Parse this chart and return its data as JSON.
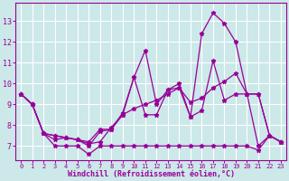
{
  "title": "",
  "xlabel": "Windchill (Refroidissement éolien,°C)",
  "x": [
    0,
    1,
    2,
    3,
    4,
    5,
    6,
    7,
    8,
    9,
    10,
    11,
    12,
    13,
    14,
    15,
    16,
    17,
    18,
    19,
    20,
    21,
    22,
    23
  ],
  "series1": [
    9.5,
    9.0,
    7.6,
    7.0,
    7.0,
    7.0,
    6.6,
    7.0,
    7.0,
    7.0,
    7.0,
    7.0,
    7.0,
    7.0,
    7.0,
    7.0,
    7.0,
    7.0,
    7.0,
    7.0,
    7.0,
    6.8,
    7.5,
    7.2
  ],
  "series2": [
    9.5,
    9.0,
    7.6,
    7.5,
    7.4,
    7.3,
    7.2,
    7.8,
    7.8,
    8.6,
    10.3,
    11.6,
    9.0,
    9.7,
    10.0,
    8.4,
    12.4,
    13.4,
    12.9,
    12.0,
    9.5,
    9.5,
    7.5,
    7.2
  ],
  "series3": [
    9.5,
    9.0,
    7.6,
    7.5,
    7.4,
    7.3,
    7.0,
    7.7,
    7.8,
    8.5,
    10.3,
    8.5,
    8.5,
    9.7,
    9.8,
    8.4,
    8.7,
    11.1,
    9.2,
    9.5,
    9.5,
    9.5,
    7.5,
    7.2
  ],
  "series4": [
    9.5,
    9.0,
    7.6,
    7.3,
    7.4,
    7.3,
    7.1,
    7.2,
    7.9,
    8.5,
    8.8,
    9.0,
    9.2,
    9.5,
    9.8,
    9.1,
    9.3,
    9.8,
    10.1,
    10.5,
    9.5,
    7.0,
    7.5,
    7.2
  ],
  "color": "#990099",
  "bg_color": "#cce8e8",
  "ylim": [
    6.3,
    13.9
  ],
  "yticks": [
    7,
    8,
    9,
    10,
    11,
    12,
    13
  ],
  "xlim": [
    -0.5,
    23.5
  ],
  "grid_color": "#b0d8d8",
  "marker": "*",
  "markersize": 3.5,
  "linewidth": 0.9
}
